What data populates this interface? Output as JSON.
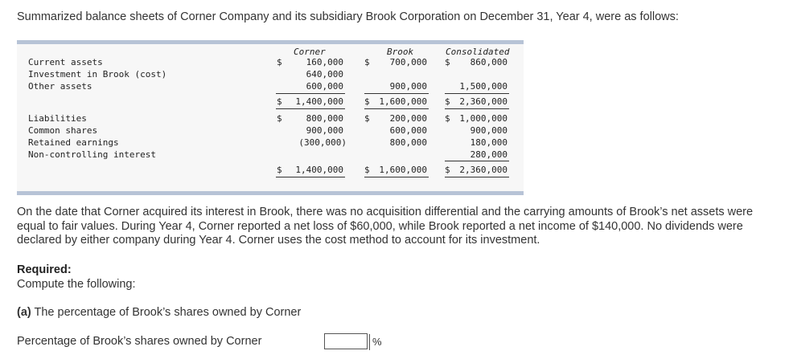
{
  "intro": "Summarized balance sheets of Corner Company and its subsidiary Brook Corporation on December 31, Year 4, were as follows:",
  "table": {
    "headers": {
      "corner": "Corner",
      "brook": "Brook",
      "consolidated": "Consolidated"
    },
    "rows": [
      {
        "label": "Current assets",
        "corner_sign": "$",
        "corner": "160,000",
        "brook_sign": "$",
        "brook": "700,000",
        "cons_sign": "$",
        "cons": "860,000"
      },
      {
        "label": "Investment in Brook (cost)",
        "corner_sign": "",
        "corner": "640,000",
        "brook_sign": "",
        "brook": "",
        "cons_sign": "",
        "cons": ""
      },
      {
        "label": "Other assets",
        "corner_sign": "",
        "corner": "600,000",
        "brook_sign": "",
        "brook": "900,000",
        "cons_sign": "",
        "cons": "1,500,000"
      },
      {
        "label": "",
        "corner_sign": "$",
        "corner": "1,400,000",
        "brook_sign": "$",
        "brook": "1,600,000",
        "cons_sign": "$",
        "cons": "2,360,000"
      },
      {
        "label": "Liabilities",
        "corner_sign": "$",
        "corner": "800,000",
        "brook_sign": "$",
        "brook": "200,000",
        "cons_sign": "$",
        "cons": "1,000,000"
      },
      {
        "label": "Common shares",
        "corner_sign": "",
        "corner": "900,000",
        "brook_sign": "",
        "brook": "600,000",
        "cons_sign": "",
        "cons": "900,000"
      },
      {
        "label": "Retained earnings",
        "corner_sign": "",
        "corner": "(300,000)",
        "brook_sign": "",
        "brook": "800,000",
        "cons_sign": "",
        "cons": "180,000"
      },
      {
        "label": "Non-controlling interest",
        "corner_sign": "",
        "corner": "",
        "brook_sign": "",
        "brook": "",
        "cons_sign": "",
        "cons": "280,000"
      },
      {
        "label": "",
        "corner_sign": "$",
        "corner": "1,400,000",
        "brook_sign": "$",
        "brook": "1,600,000",
        "cons_sign": "$",
        "cons": "2,360,000"
      }
    ]
  },
  "paragraph": "On the date that Corner acquired its interest in Brook, there was no acquisition differential and the carrying amounts of Brook’s net assets were equal to fair values. During Year 4, Corner reported a net loss of $60,000, while Brook reported a net income of $140,000. No dividends were declared by either company during Year 4. Corner uses the cost method to account for its investment.",
  "required": {
    "title": "Required:",
    "subtitle": "Compute the following:",
    "part_a_prefix": "(a)",
    "part_a_text": " The percentage of Brook’s shares owned by Corner",
    "answer_label": "Percentage of Brook’s shares owned by Corner",
    "answer_value": "",
    "answer_unit": "%"
  }
}
